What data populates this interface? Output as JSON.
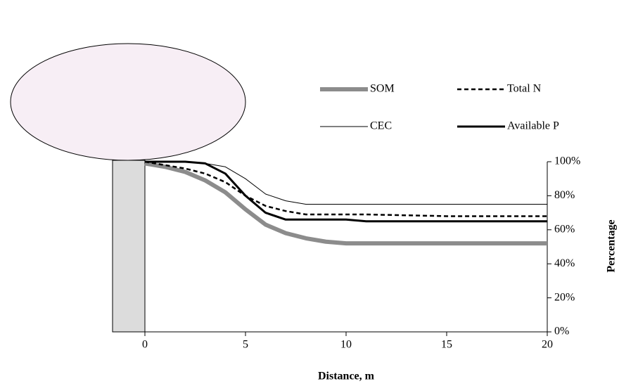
{
  "chart_data": {
    "type": "line",
    "x_label": "Distance, m",
    "y_label": "Percentage",
    "x": [
      0,
      1,
      2,
      3,
      4,
      5,
      6,
      7,
      8,
      9,
      10,
      11,
      15,
      20
    ],
    "series": [
      {
        "name": "SOM",
        "color": "#8c8c8c",
        "width": 6,
        "dash": "none",
        "values": [
          99,
          97,
          94,
          89,
          82,
          72,
          63,
          58,
          55,
          53,
          52,
          52,
          52,
          52
        ]
      },
      {
        "name": "Total N",
        "color": "#000000",
        "width": 2.5,
        "dash": "6,4",
        "values": [
          100,
          98,
          96,
          93,
          88,
          80,
          74,
          71,
          69,
          69,
          69,
          69,
          68,
          68
        ]
      },
      {
        "name": "CEC",
        "color": "#000000",
        "width": 1,
        "dash": "none",
        "values": [
          100,
          100,
          100,
          99,
          97,
          90,
          81,
          77,
          75,
          75,
          75,
          75,
          75,
          75
        ]
      },
      {
        "name": "Available P",
        "color": "#000000",
        "width": 3,
        "dash": "none",
        "values": [
          100,
          100,
          100,
          99,
          93,
          80,
          70,
          66,
          66,
          66,
          66,
          65,
          65,
          65
        ]
      }
    ],
    "xlim": [
      0,
      20
    ],
    "xticks": [
      0,
      5,
      10,
      15,
      20
    ],
    "ylim": [
      0,
      100
    ],
    "yticks": [
      {
        "value": 0,
        "label": "0%"
      },
      {
        "value": 20,
        "label": "20%"
      },
      {
        "value": 40,
        "label": "40%"
      },
      {
        "value": 60,
        "label": "60%"
      },
      {
        "value": 80,
        "label": "80%"
      },
      {
        "value": 100,
        "label": "100%"
      }
    ],
    "y_axis_side": "right",
    "grid": false
  }
}
